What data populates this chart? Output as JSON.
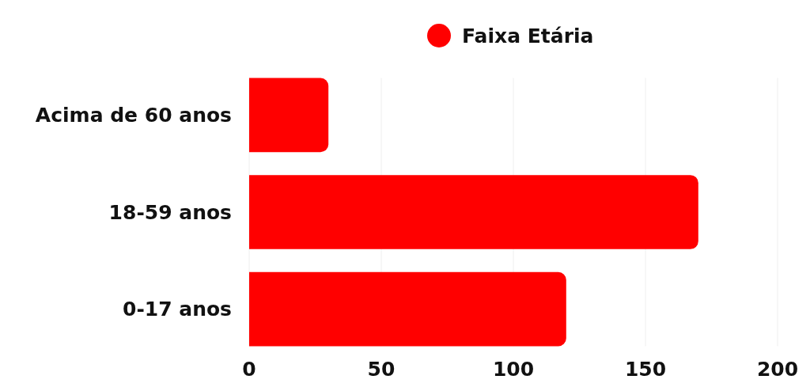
{
  "chart_data": {
    "type": "bar",
    "orientation": "horizontal",
    "categories": [
      "Acima de 60 anos",
      "18-59 anos",
      "0-17 anos"
    ],
    "series": [
      {
        "name": "Faixa Etária",
        "color": "#ff0000",
        "values": [
          30,
          170,
          120
        ]
      }
    ],
    "xlim": [
      0,
      200
    ],
    "xticks": [
      0,
      50,
      100,
      150,
      200
    ],
    "grid": "x",
    "legend": "top"
  }
}
